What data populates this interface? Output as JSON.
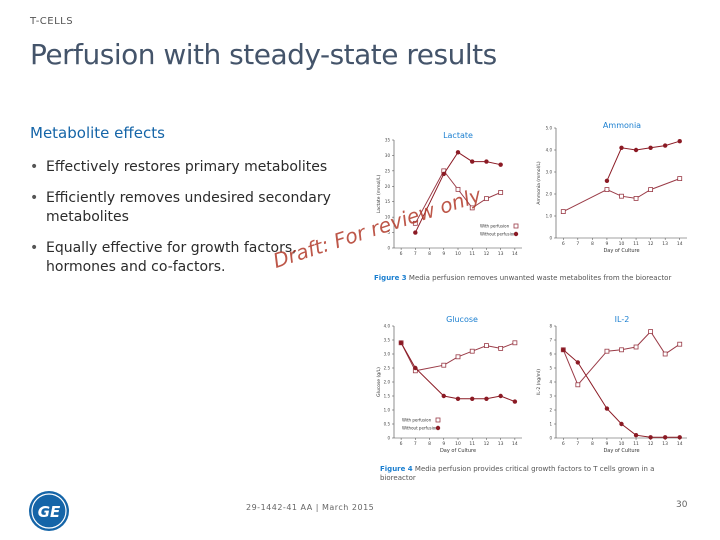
{
  "header": {
    "kicker": "T-CELLS",
    "title": "Perfusion with steady-state results"
  },
  "content": {
    "subheading": "Metabolite effects",
    "bullets": [
      "Effectively restores primary metabolites",
      "Efficiently removes undesired secondary metabolites",
      "Equally effective for growth factors, hormones and co-factors."
    ]
  },
  "watermark": "Draft: For review only",
  "figures": {
    "fig3_caption_label": "Figure 3",
    "fig3_caption_text": "Media perfusion removes unwanted waste metabolites from the bioreactor",
    "fig4_caption_label": "Figure 4",
    "fig4_caption_text": "Media perfusion provides critical growth factors to T cells grown in a bioreactor"
  },
  "footer": {
    "doc_id": "29-1442-41 AA | March 2015",
    "page": "30"
  },
  "logo": {
    "text": "GE",
    "icon": "ge-logo-icon",
    "color": "#1565a8"
  },
  "colors": {
    "with": "#9a3b47",
    "without": "#8b1a24",
    "title": "#1b7fd0"
  },
  "chart_data": [
    {
      "type": "line",
      "title": "Lactate",
      "xlabel": "",
      "ylabel": "Lactate (mmol/L)",
      "x": [
        7,
        9,
        10,
        11,
        12,
        13
      ],
      "xlim": [
        5.5,
        14.5
      ],
      "ylim": [
        0,
        35
      ],
      "xticks": [
        "6",
        "7",
        "8",
        "9",
        "10",
        "11",
        "12",
        "13",
        "14"
      ],
      "xtick_values": [
        6,
        7,
        8,
        9,
        10,
        11,
        12,
        13,
        14
      ],
      "yticks": [
        "0",
        "5",
        "10",
        "15",
        "20",
        "25",
        "30",
        "35"
      ],
      "ytick_values": [
        0,
        5,
        10,
        15,
        20,
        25,
        30,
        35
      ],
      "legend": [
        "With perfusion",
        "Without perfusion"
      ],
      "series": [
        {
          "name": "With perfusion",
          "x": [
            7,
            9,
            10,
            11,
            12,
            13
          ],
          "values": [
            8,
            25,
            19,
            13,
            16,
            18
          ]
        },
        {
          "name": "Without perfusion",
          "x": [
            7,
            9,
            10,
            11,
            12,
            13
          ],
          "values": [
            5,
            24,
            31,
            28,
            28,
            27
          ]
        }
      ]
    },
    {
      "type": "line",
      "title": "Ammonia",
      "xlabel": "Day of Culture",
      "ylabel": "Ammonia (mmol/L)",
      "xlim": [
        5.5,
        14.5
      ],
      "ylim": [
        0,
        5
      ],
      "xticks": [
        "6",
        "7",
        "8",
        "9",
        "10",
        "11",
        "12",
        "13",
        "14"
      ],
      "xtick_values": [
        6,
        7,
        8,
        9,
        10,
        11,
        12,
        13,
        14
      ],
      "yticks": [
        "0",
        "1.0",
        "2.0",
        "3.0",
        "4.0",
        "5.0"
      ],
      "ytick_values": [
        0,
        1,
        2,
        3,
        4,
        5
      ],
      "series": [
        {
          "name": "With perfusion",
          "x": [
            6,
            9,
            10,
            11,
            12,
            14
          ],
          "values": [
            1.2,
            2.2,
            1.9,
            1.8,
            2.2,
            2.7
          ]
        },
        {
          "name": "Without perfusion",
          "x": [
            9,
            10,
            11,
            12,
            13,
            14
          ],
          "values": [
            2.6,
            4.1,
            4.0,
            4.1,
            4.2,
            4.4
          ]
        }
      ]
    },
    {
      "type": "line",
      "title": "Glucose",
      "xlabel": "Day of Culture",
      "ylabel": "Glucose (g/L)",
      "xlim": [
        5.5,
        14.5
      ],
      "ylim": [
        0,
        4.0
      ],
      "xticks": [
        "6",
        "7",
        "8",
        "9",
        "10",
        "11",
        "12",
        "13",
        "14"
      ],
      "xtick_values": [
        6,
        7,
        8,
        9,
        10,
        11,
        12,
        13,
        14
      ],
      "yticks": [
        "0",
        "0.5",
        "1.0",
        "1.5",
        "2.0",
        "2.5",
        "3.0",
        "3.5",
        "4.0"
      ],
      "ytick_values": [
        0,
        0.5,
        1,
        1.5,
        2,
        2.5,
        3,
        3.5,
        4
      ],
      "legend": [
        "With perfusion",
        "Without perfusion"
      ],
      "series": [
        {
          "name": "With perfusion",
          "x": [
            6,
            7,
            9,
            10,
            11,
            12,
            13,
            14
          ],
          "values": [
            3.4,
            2.4,
            2.6,
            2.9,
            3.1,
            3.3,
            3.2,
            3.4
          ]
        },
        {
          "name": "Without perfusion",
          "x": [
            6,
            7,
            9,
            10,
            11,
            12,
            13,
            14
          ],
          "values": [
            3.4,
            2.5,
            1.5,
            1.4,
            1.4,
            1.4,
            1.5,
            1.3
          ]
        }
      ]
    },
    {
      "type": "line",
      "title": "IL-2",
      "xlabel": "Day of Culture",
      "ylabel": "IL-2 (ng/ml)",
      "xlim": [
        5.5,
        14.5
      ],
      "ylim": [
        0,
        8
      ],
      "xticks": [
        "6",
        "7",
        "8",
        "9",
        "10",
        "11",
        "12",
        "13",
        "14"
      ],
      "xtick_values": [
        6,
        7,
        8,
        9,
        10,
        11,
        12,
        13,
        14
      ],
      "yticks": [
        "0",
        "1",
        "2",
        "3",
        "4",
        "5",
        "6",
        "7",
        "8"
      ],
      "ytick_values": [
        0,
        1,
        2,
        3,
        4,
        5,
        6,
        7,
        8
      ],
      "series": [
        {
          "name": "With perfusion",
          "x": [
            6,
            7,
            9,
            10,
            11,
            12,
            13,
            14
          ],
          "values": [
            6.3,
            3.8,
            6.2,
            6.3,
            6.5,
            7.6,
            6.0,
            6.7
          ]
        },
        {
          "name": "Without perfusion",
          "x": [
            6,
            7,
            9,
            10,
            11,
            12,
            13,
            14
          ],
          "values": [
            6.3,
            5.4,
            2.1,
            1.0,
            0.2,
            0.05,
            0.05,
            0.05
          ]
        }
      ]
    }
  ]
}
